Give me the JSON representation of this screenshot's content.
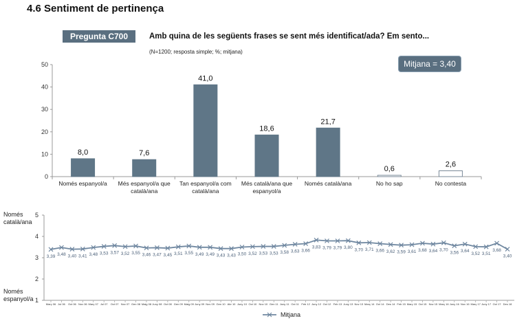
{
  "header": {
    "section_title": "4.6 Sentiment de pertinença",
    "question_tag": "Pregunta C700",
    "question_text": "Amb quina de les següents frases se sent més identificat/ada? Em sento...",
    "note": "(N=1200; resposta simple; %; mitjana)",
    "mean_badge": "Mitjana = 3,40"
  },
  "colors": {
    "bar": "#5f7687",
    "line": "#6f87a0",
    "badge": "#5a6f80"
  },
  "chart_data": [
    {
      "type": "bar",
      "ylim": [
        0,
        50
      ],
      "yticks": [
        0,
        10,
        20,
        30,
        40,
        50
      ],
      "categories": [
        [
          "Només espanyol/a"
        ],
        [
          "Més espanyol/a que",
          "català/ana"
        ],
        [
          "Tan espanyol/a com",
          "català/ana"
        ],
        [
          "Més català/ana que",
          "espanyol/a"
        ],
        [
          "Només català/ana"
        ],
        [
          "No ho sap"
        ],
        [
          "No contesta"
        ]
      ],
      "values": [
        8.0,
        7.6,
        41.0,
        18.6,
        21.7,
        0.6,
        2.6
      ],
      "value_labels": [
        "8,0",
        "7,6",
        "41,0",
        "18,6",
        "21,7",
        "0,6",
        "2,6"
      ],
      "bar_styles": [
        "solid",
        "solid",
        "solid",
        "solid",
        "solid",
        "outline",
        "outline"
      ]
    },
    {
      "type": "line",
      "ylim": [
        1,
        5
      ],
      "yticks": [
        1,
        2,
        3,
        4,
        5
      ],
      "ylabel_top": [
        "Només",
        "català/ana"
      ],
      "ylabel_bottom": [
        "Només",
        "espanyol/a"
      ],
      "legend": "Mitjana",
      "x": [
        "Març 06",
        "Jul 06",
        "Oct 06",
        "Nov 06",
        "Març 07",
        "Jul 07",
        "Oct 07",
        "Nov 07",
        "Gen 08",
        "Maig 08",
        "Juny 08",
        "Oct 08",
        "Gen 09",
        "Maig 09",
        "Juny 09",
        "Nov 09",
        "Gen 10",
        "Abr 10",
        "Juny 10",
        "Oct 10",
        "Nov 10",
        "Gen 11",
        "Juny 11",
        "Oct 11",
        "Feb 12",
        "Juny 12",
        "Oct 12",
        "Feb 13",
        "Juny 13",
        "Nov 13",
        "Març 14",
        "Oct 14",
        "Des 14",
        "Feb 15",
        "Març 15",
        "Oct 15",
        "Nov 15",
        "Març 16",
        "Juny 16",
        "Nov 16",
        "Març 17",
        "Juny 17",
        "Oct 17",
        "Des 18"
      ],
      "values": [
        3.39,
        3.48,
        3.4,
        3.41,
        3.48,
        3.53,
        3.57,
        3.52,
        3.55,
        3.46,
        3.47,
        3.45,
        3.51,
        3.55,
        3.49,
        3.49,
        3.43,
        3.43,
        3.5,
        3.52,
        3.53,
        3.53,
        3.58,
        3.63,
        3.66,
        3.83,
        3.79,
        3.79,
        3.8,
        3.7,
        3.71,
        3.66,
        3.62,
        3.59,
        3.61,
        3.68,
        3.64,
        3.7,
        3.56,
        3.64,
        3.52,
        3.51,
        3.68,
        3.4
      ],
      "value_labels": [
        "3,39",
        "3,48",
        "3,40",
        "3,41",
        "3,48",
        "3,53",
        "3,57",
        "3,52",
        "3,55",
        "3,46",
        "3,47",
        "3,45",
        "3,51",
        "3,55",
        "3,49",
        "3,49",
        "3,43",
        "3,43",
        "3,50",
        "3,52",
        "3,53",
        "3,53",
        "3,58",
        "3,63",
        "3,66",
        "3,83",
        "3,79",
        "3,79",
        "3,80",
        "3,70",
        "3,71",
        "3,66",
        "3,62",
        "3,59",
        "3,61",
        "3,68",
        "3,64",
        "3,70",
        "3,56",
        "3,64",
        "3,52",
        "3,51",
        "3,68",
        "3,40"
      ]
    }
  ]
}
